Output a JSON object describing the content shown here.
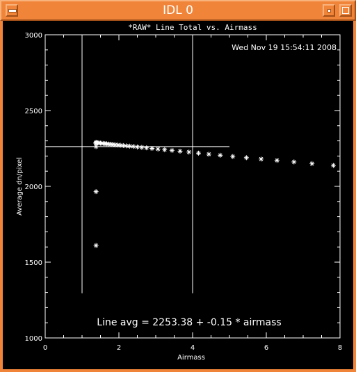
{
  "window": {
    "title": "IDL 0",
    "colors": {
      "titlebar": "#f0853a",
      "plot_bg": "#000000",
      "ink": "#ffffff"
    }
  },
  "plot": {
    "timestamp": "Wed Nov 19 15:54:11 2008",
    "fit_label": "Line avg = 2253.38 + -0.15 * airmass"
  },
  "chart_data": {
    "type": "scatter",
    "title": "*RAW* Line Total vs. Airmass",
    "xlabel": "Airmass",
    "ylabel": "Average dn/pixel",
    "xlim": [
      0,
      8
    ],
    "ylim": [
      1000,
      3000
    ],
    "x_ticks": [
      0,
      2,
      4,
      6,
      8
    ],
    "y_ticks": [
      1000,
      1500,
      2000,
      2500,
      3000
    ],
    "marker": "asterisk",
    "points": [
      [
        1.37,
        2285
      ],
      [
        1.38,
        2290
      ],
      [
        1.4,
        2288
      ],
      [
        1.43,
        2287
      ],
      [
        1.46,
        2286
      ],
      [
        1.5,
        2285
      ],
      [
        1.54,
        2284
      ],
      [
        1.58,
        2283
      ],
      [
        1.62,
        2282
      ],
      [
        1.67,
        2281
      ],
      [
        1.72,
        2279
      ],
      [
        1.78,
        2278
      ],
      [
        1.84,
        2276
      ],
      [
        1.9,
        2274
      ],
      [
        1.97,
        2273
      ],
      [
        2.04,
        2271
      ],
      [
        2.12,
        2269
      ],
      [
        2.2,
        2267
      ],
      [
        2.29,
        2265
      ],
      [
        2.39,
        2263
      ],
      [
        2.5,
        2260
      ],
      [
        2.62,
        2257
      ],
      [
        2.75,
        2254
      ],
      [
        2.9,
        2250
      ],
      [
        3.06,
        2246
      ],
      [
        3.24,
        2242
      ],
      [
        3.44,
        2237
      ],
      [
        3.66,
        2232
      ],
      [
        3.9,
        2226
      ],
      [
        4.16,
        2219
      ],
      [
        4.44,
        2212
      ],
      [
        4.75,
        2205
      ],
      [
        5.09,
        2197
      ],
      [
        5.46,
        2189
      ],
      [
        5.86,
        2180
      ],
      [
        6.29,
        2171
      ],
      [
        6.75,
        2161
      ],
      [
        7.24,
        2150
      ],
      [
        7.82,
        2138
      ],
      [
        1.38,
        2262
      ],
      [
        1.38,
        1965
      ],
      [
        1.38,
        1610
      ]
    ],
    "reference_lines": {
      "horizontal": {
        "y": 2262,
        "x_from": 0,
        "x_to": 5.0
      },
      "vertical": [
        {
          "x": 1.0,
          "y_from": 1295,
          "y_to": 3000
        },
        {
          "x": 4.0,
          "y_from": 1295,
          "y_to": 3000
        }
      ]
    }
  }
}
